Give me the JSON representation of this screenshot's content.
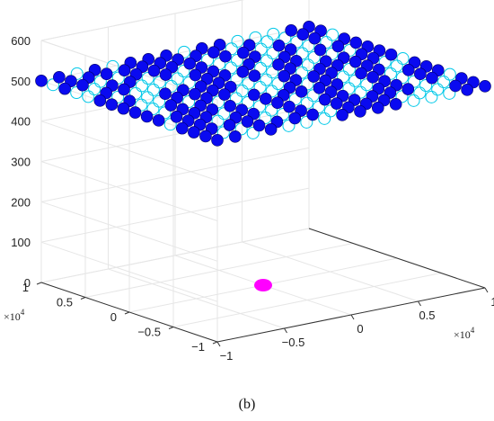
{
  "figure": {
    "caption": "(b)"
  },
  "chart_data": {
    "type": "scatter",
    "title": "",
    "xlabel": "",
    "ylabel": "",
    "zlabel": "",
    "xlim": [
      -10000,
      10000
    ],
    "ylim": [
      -10000,
      10000
    ],
    "zlim": [
      0,
      600
    ],
    "x_ticks": [
      -1,
      -0.5,
      0,
      0.5,
      1
    ],
    "y_ticks": [
      -1,
      -0.5,
      0,
      0.5,
      1
    ],
    "z_ticks": [
      0,
      100,
      200,
      300,
      400,
      500,
      600
    ],
    "x_multiplier": "×10^4",
    "y_multiplier": "×10^4",
    "grid": true,
    "series": [
      {
        "marker": "open-circle",
        "color": "#00c8e8",
        "z": 500,
        "x_range": [
          -10000,
          10000
        ],
        "y_range": [
          -10000,
          10000
        ],
        "grid_points_per_side": 16
      },
      {
        "marker": "filled-circle",
        "color": "#0a0af0",
        "z": 500,
        "x_range": [
          -10000,
          10000
        ],
        "y_range": [
          -10000,
          10000
        ],
        "count": 156
      },
      {
        "marker": "filled-circle",
        "color": "#ff00ff",
        "points": [
          [
            0,
            0,
            0
          ]
        ]
      }
    ]
  }
}
